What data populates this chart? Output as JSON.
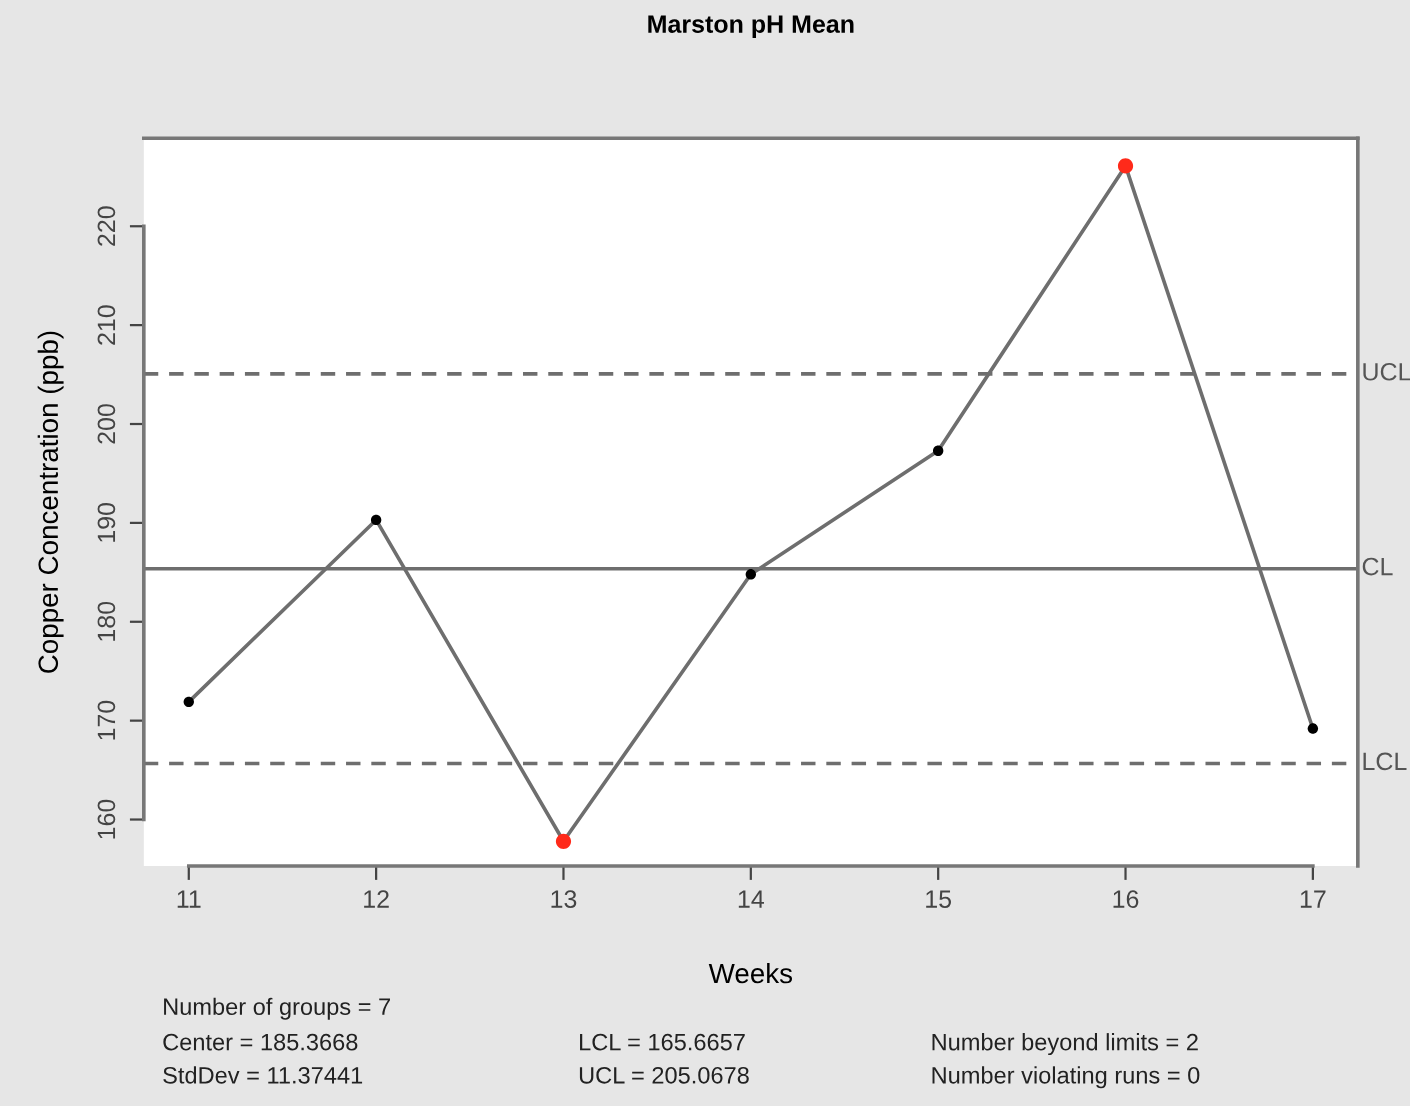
{
  "chart_data": {
    "type": "line",
    "title": "Marston pH Mean",
    "xlabel": "Weeks",
    "ylabel": "Copper Concentration (ppb)",
    "x": [
      11,
      12,
      13,
      14,
      15,
      16,
      17
    ],
    "series": [
      {
        "color": "#6e6e6e",
        "values": [
          171.9,
          190.3,
          157.8,
          184.8,
          197.3,
          226.1,
          169.2
        ],
        "colors": [
          "#000000",
          "#000000",
          "#ff2a1a",
          "#000000",
          "#000000",
          "#ff2a1a",
          "#000000"
        ]
      }
    ],
    "marker": "circle",
    "line_style": "solid",
    "xlim": [
      10.76,
      17.24
    ],
    "xticks": [
      11,
      12,
      13,
      14,
      15,
      16,
      17
    ],
    "ylim": [
      155.3,
      228.9
    ],
    "yticks": [
      160,
      170,
      180,
      190,
      200,
      210,
      220
    ],
    "ref_lines": [
      {
        "axis": "y",
        "value": 205.0678,
        "label": "UCL",
        "color": "#6e6e6e",
        "line_style": "dashed"
      },
      {
        "axis": "y",
        "value": 185.3668,
        "label": "CL",
        "color": "#6e6e6e",
        "line_style": "solid"
      },
      {
        "axis": "y",
        "value": 165.6657,
        "label": "LCL",
        "color": "#6e6e6e",
        "line_style": "dashed"
      }
    ],
    "annotations": [
      "Number of groups = 7",
      "Center = 185.3668",
      "StdDev = 11.37441",
      "LCL = 165.6657",
      "UCL = 205.0678",
      "Number beyond limits = 2",
      "Number violating runs = 0"
    ]
  }
}
